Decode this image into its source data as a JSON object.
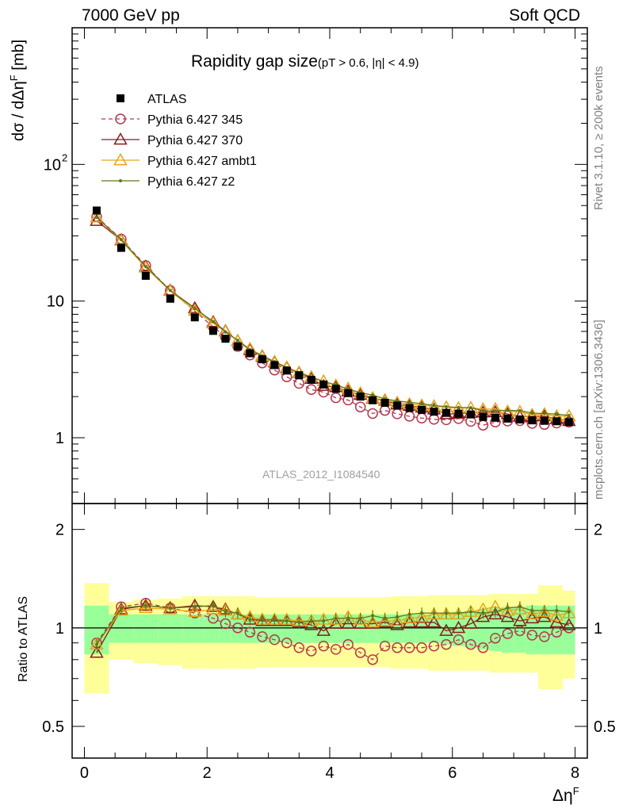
{
  "header": {
    "left": "7000 GeV pp",
    "right": "Soft QCD"
  },
  "side": {
    "rivet": "Rivet 3.1.10, ≥ 200k events",
    "mcplots": "mcplots.cern.ch [arXiv:1306.3436]"
  },
  "chart_data": {
    "type": "line",
    "title": "Rapidity gap size",
    "subtitle": "(pT > 0.6, |η| < 4.9)",
    "analysis_id": "ATLAS_2012_I1084540",
    "xlabel": "Δη",
    "xlabel_sup": "F",
    "ylabel_main": "dσ / dΔη",
    "ylabel_sup": "F",
    "ylabel_unit": "[mb]",
    "ylabel_ratio": "Ratio to ATLAS",
    "xlim": [
      -0.2,
      8.2
    ],
    "ylim_main": [
      0.33,
      1000
    ],
    "ylim_ratio": [
      0.4,
      2.4
    ],
    "y_scale": "log",
    "legend_position": "top-left",
    "x_ticks": [
      {
        "v": 0,
        "label": "0"
      },
      {
        "v": 2,
        "label": "2"
      },
      {
        "v": 4,
        "label": "4"
      },
      {
        "v": 6,
        "label": "6"
      },
      {
        "v": 8,
        "label": "8"
      }
    ],
    "y_ticks_main": [
      {
        "v": 1,
        "label": "1"
      },
      {
        "v": 10,
        "label": "10"
      },
      {
        "v": 100,
        "label": "10",
        "sup": "2"
      }
    ],
    "y_ticks_ratio": [
      {
        "v": 0.5,
        "label": "0.5"
      },
      {
        "v": 1,
        "label": "1"
      },
      {
        "v": 2,
        "label": "2"
      }
    ],
    "x": [
      0.2,
      0.6,
      1.0,
      1.4,
      1.8,
      2.1,
      2.3,
      2.5,
      2.7,
      2.9,
      3.1,
      3.3,
      3.5,
      3.7,
      3.9,
      4.1,
      4.3,
      4.5,
      4.7,
      4.9,
      5.1,
      5.3,
      5.5,
      5.7,
      5.9,
      6.1,
      6.3,
      6.5,
      6.7,
      6.9,
      7.1,
      7.3,
      7.5,
      7.7,
      7.9
    ],
    "data_series": {
      "name": "ATLAS",
      "values": [
        46,
        24.5,
        15.3,
        10.4,
        7.6,
        6.05,
        5.3,
        4.65,
        4.15,
        3.75,
        3.4,
        3.1,
        2.87,
        2.65,
        2.45,
        2.28,
        2.12,
        2.0,
        1.88,
        1.8,
        1.72,
        1.65,
        1.6,
        1.55,
        1.52,
        1.5,
        1.48,
        1.42,
        1.4,
        1.38,
        1.36,
        1.34,
        1.33,
        1.32,
        1.3
      ],
      "band_inner": [
        0.17,
        0.1,
        0.1,
        0.1,
        0.1,
        0.1,
        0.1,
        0.1,
        0.1,
        0.1,
        0.1,
        0.1,
        0.1,
        0.1,
        0.1,
        0.1,
        0.1,
        0.1,
        0.1,
        0.1,
        0.1,
        0.1,
        0.1,
        0.1,
        0.11,
        0.12,
        0.13,
        0.14,
        0.15,
        0.16,
        0.16,
        0.17,
        0.17,
        0.17,
        0.17
      ],
      "band_outer": [
        0.37,
        0.2,
        0.22,
        0.23,
        0.25,
        0.25,
        0.25,
        0.25,
        0.25,
        0.24,
        0.24,
        0.24,
        0.24,
        0.24,
        0.24,
        0.24,
        0.24,
        0.24,
        0.24,
        0.24,
        0.25,
        0.25,
        0.25,
        0.26,
        0.26,
        0.26,
        0.26,
        0.26,
        0.27,
        0.27,
        0.27,
        0.27,
        0.35,
        0.35,
        0.3
      ]
    },
    "series": [
      {
        "name": "Pythia 6.427 345",
        "color": "#b5374e",
        "marker": "circle",
        "dashed": true,
        "ratio": [
          0.9,
          1.16,
          1.19,
          1.15,
          1.11,
          1.07,
          1.03,
          1.0,
          0.97,
          0.94,
          0.92,
          0.9,
          0.87,
          0.85,
          0.88,
          0.86,
          0.89,
          0.84,
          0.8,
          0.88,
          0.87,
          0.87,
          0.87,
          0.88,
          0.89,
          0.92,
          0.89,
          0.87,
          0.93,
          0.96,
          0.98,
          0.95,
          0.94,
          0.97,
          1.0
        ]
      },
      {
        "name": "Pythia 6.427 370",
        "color": "#8b1a1a",
        "marker": "triangle",
        "dashed": false,
        "ratio": [
          0.84,
          1.14,
          1.17,
          1.15,
          1.17,
          1.16,
          1.14,
          1.1,
          1.06,
          1.05,
          1.05,
          1.05,
          1.04,
          1.02,
          0.98,
          1.03,
          1.03,
          1.03,
          1.03,
          1.04,
          1.02,
          1.04,
          1.04,
          1.04,
          0.98,
          1.0,
          1.03,
          1.08,
          1.1,
          1.08,
          1.05,
          1.07,
          1.08,
          1.04,
          1.02
        ]
      },
      {
        "name": "Pythia 6.427 ambt1",
        "color": "#e8a317",
        "marker": "triangle",
        "dashed": false,
        "ratio": [
          0.89,
          1.13,
          1.15,
          1.14,
          1.12,
          1.14,
          1.13,
          1.1,
          1.08,
          1.06,
          1.06,
          1.06,
          1.05,
          1.05,
          1.06,
          1.06,
          1.08,
          1.06,
          1.04,
          1.05,
          1.05,
          1.07,
          1.08,
          1.1,
          1.1,
          1.1,
          1.12,
          1.14,
          1.16,
          1.13,
          1.14,
          1.1,
          1.12,
          1.09,
          1.11
        ]
      },
      {
        "name": "Pythia 6.427 z2",
        "color": "#5b7a1b",
        "marker": "dot",
        "dashed": false,
        "ratio": [
          0.89,
          1.15,
          1.17,
          1.15,
          1.16,
          1.17,
          1.12,
          1.11,
          1.06,
          1.06,
          1.06,
          1.05,
          1.04,
          1.05,
          1.05,
          1.07,
          1.07,
          1.07,
          1.09,
          1.07,
          1.08,
          1.1,
          1.11,
          1.11,
          1.11,
          1.11,
          1.12,
          1.11,
          1.12,
          1.15,
          1.16,
          1.13,
          1.13,
          1.13,
          1.12
        ]
      }
    ]
  }
}
